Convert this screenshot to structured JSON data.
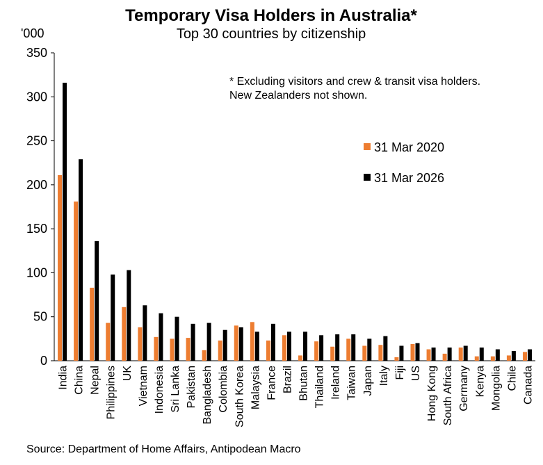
{
  "chart_data": {
    "type": "bar",
    "title": "Temporary Visa Holders in Australia*",
    "subtitle": "Top 30 countries by citizenship",
    "ylabel": "'000",
    "xlabel": "",
    "ylim": [
      0,
      350
    ],
    "yticks": [
      0,
      50,
      100,
      150,
      200,
      250,
      300,
      350
    ],
    "grid": false,
    "legend_position": "right",
    "note": [
      "* Excluding visitors and crew & transit visa holders.",
      "New Zealanders not shown."
    ],
    "source": "Source: Department of Home Affairs, Antipodean Macro",
    "categories": [
      "India",
      "China",
      "Nepal",
      "Philippines",
      "UK",
      "Vietnam",
      "Indonesia",
      "Sri Lanka",
      "Pakistan",
      "Bangladesh",
      "Colombia",
      "South Korea",
      "Malaysia",
      "France",
      "Brazil",
      "Bhutan",
      "Thailand",
      "Ireland",
      "Taiwan",
      "Japan",
      "Italy",
      "Fiji",
      "US",
      "Hong Kong",
      "South Africa",
      "Germany",
      "Kenya",
      "Mongolia",
      "Chile",
      "Canada"
    ],
    "series": [
      {
        "name": "31 Mar 2020",
        "color": "#ED7D31",
        "values": [
          211,
          181,
          83,
          43,
          61,
          38,
          27,
          25,
          26,
          12,
          23,
          40,
          44,
          23,
          29,
          6,
          22,
          16,
          25,
          17,
          18,
          4,
          19,
          13,
          8,
          15,
          5,
          5,
          6,
          10
        ]
      },
      {
        "name": "31 Mar 2026",
        "color": "#000000",
        "values": [
          316,
          229,
          136,
          98,
          103,
          63,
          54,
          50,
          42,
          43,
          35,
          38,
          33,
          42,
          33,
          33,
          29,
          30,
          30,
          25,
          28,
          17,
          20,
          15,
          15,
          17,
          15,
          13,
          11,
          13
        ]
      }
    ]
  }
}
